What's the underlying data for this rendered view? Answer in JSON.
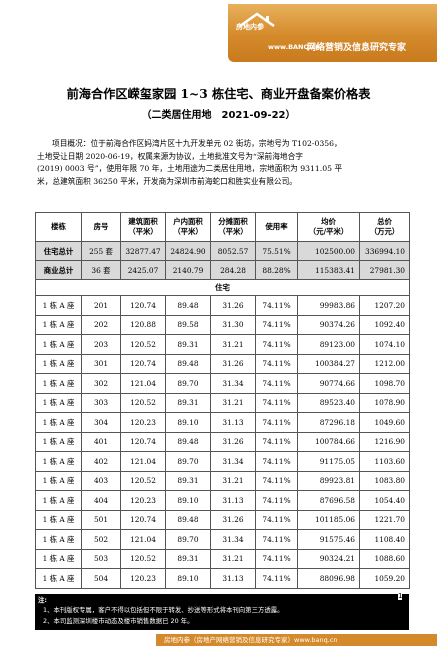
{
  "banner": {
    "brand": "房地内参",
    "url": "www.BANQ.cn",
    "slogan": "网络营销及信息研究专家"
  },
  "title": "前海合作区嵘玺家园 1~3 栋住宅、商业开盘备案价格表",
  "subtitle": "（二类居住用地　2021-09-22）",
  "overview": [
    "项目概况：位于前海合作区妈湾片区十九开发单元 02 街坊，宗地号为 T102-0356，",
    "土地受让日期 2020-06-19，权属来源为协议，土地批准文号为“深前海地合字",
    "(2019) 0003 号”，使用年限 70 年，土地用途为二类居住用地，宗地面积为 9311.05 平",
    "米，总建筑面积 36250 平米，开发商为深圳市前海蛇口和胜实业有限公司。"
  ],
  "table": {
    "headers": [
      "楼栋",
      "房号",
      "建筑面积\n（平米）",
      "户内面积\n（平米）",
      "分摊面积\n（平米）",
      "使用率",
      "均价\n（元/平米）",
      "总价\n（万元）"
    ],
    "summary": [
      {
        "label": "住宅总计",
        "room": "255 套",
        "area": "32877.47",
        "inner": "24824.90",
        "shared": "8052.57",
        "rate": "75.51%",
        "price": "102500.00",
        "total": "336994.10"
      },
      {
        "label": "商业总计",
        "room": "36 套",
        "area": "2425.07",
        "inner": "2140.79",
        "shared": "284.28",
        "rate": "88.28%",
        "price": "115383.41",
        "total": "27981.30"
      }
    ],
    "section_label": "住宅",
    "rows": [
      {
        "building": "1 栋 A 座",
        "room": "201",
        "area": "120.74",
        "inner": "89.48",
        "shared": "31.26",
        "rate": "74.11%",
        "price": "99983.86",
        "total": "1207.20"
      },
      {
        "building": "1 栋 A 座",
        "room": "202",
        "area": "120.88",
        "inner": "89.58",
        "shared": "31.30",
        "rate": "74.11%",
        "price": "90374.26",
        "total": "1092.40"
      },
      {
        "building": "1 栋 A 座",
        "room": "203",
        "area": "120.52",
        "inner": "89.31",
        "shared": "31.21",
        "rate": "74.11%",
        "price": "89123.00",
        "total": "1074.10"
      },
      {
        "building": "1 栋 A 座",
        "room": "301",
        "area": "120.74",
        "inner": "89.48",
        "shared": "31.26",
        "rate": "74.11%",
        "price": "100384.27",
        "total": "1212.00"
      },
      {
        "building": "1 栋 A 座",
        "room": "302",
        "area": "121.04",
        "inner": "89.70",
        "shared": "31.34",
        "rate": "74.11%",
        "price": "90774.66",
        "total": "1098.70"
      },
      {
        "building": "1 栋 A 座",
        "room": "303",
        "area": "120.52",
        "inner": "89.31",
        "shared": "31.21",
        "rate": "74.11%",
        "price": "89523.40",
        "total": "1078.90"
      },
      {
        "building": "1 栋 A 座",
        "room": "304",
        "area": "120.23",
        "inner": "89.10",
        "shared": "31.13",
        "rate": "74.11%",
        "price": "87296.18",
        "total": "1049.60"
      },
      {
        "building": "1 栋 A 座",
        "room": "401",
        "area": "120.74",
        "inner": "89.48",
        "shared": "31.26",
        "rate": "74.11%",
        "price": "100784.66",
        "total": "1216.90"
      },
      {
        "building": "1 栋 A 座",
        "room": "402",
        "area": "121.04",
        "inner": "89.70",
        "shared": "31.34",
        "rate": "74.11%",
        "price": "91175.05",
        "total": "1103.60"
      },
      {
        "building": "1 栋 A 座",
        "room": "403",
        "area": "120.52",
        "inner": "89.31",
        "shared": "31.21",
        "rate": "74.11%",
        "price": "89923.81",
        "total": "1083.80"
      },
      {
        "building": "1 栋 A 座",
        "room": "404",
        "area": "120.23",
        "inner": "89.10",
        "shared": "31.13",
        "rate": "74.11%",
        "price": "87696.58",
        "total": "1054.40"
      },
      {
        "building": "1 栋 A 座",
        "room": "501",
        "area": "120.74",
        "inner": "89.48",
        "shared": "31.26",
        "rate": "74.11%",
        "price": "101185.06",
        "total": "1221.70"
      },
      {
        "building": "1 栋 A 座",
        "room": "502",
        "area": "121.04",
        "inner": "89.70",
        "shared": "31.34",
        "rate": "74.11%",
        "price": "91575.46",
        "total": "1108.40"
      },
      {
        "building": "1 栋 A 座",
        "room": "503",
        "area": "120.52",
        "inner": "89.31",
        "shared": "31.21",
        "rate": "74.11%",
        "price": "90324.21",
        "total": "1088.60"
      },
      {
        "building": "1 栋 A 座",
        "room": "504",
        "area": "120.23",
        "inner": "89.10",
        "shared": "31.13",
        "rate": "74.11%",
        "price": "88096.98",
        "total": "1059.20"
      }
    ]
  },
  "footer": {
    "note_label": "注:",
    "notes": [
      "1、本刊版权专属，客户不得以包括但不限于转发、抄送等形式将本刊向第三方透露。",
      "2、本司监测深圳楼市动态及楼市销售数据已 20 年。"
    ]
  },
  "page_number": "1",
  "bottom_bar": "房地内参（房地产网络营销及信息研究专家）www.banq.cn"
}
